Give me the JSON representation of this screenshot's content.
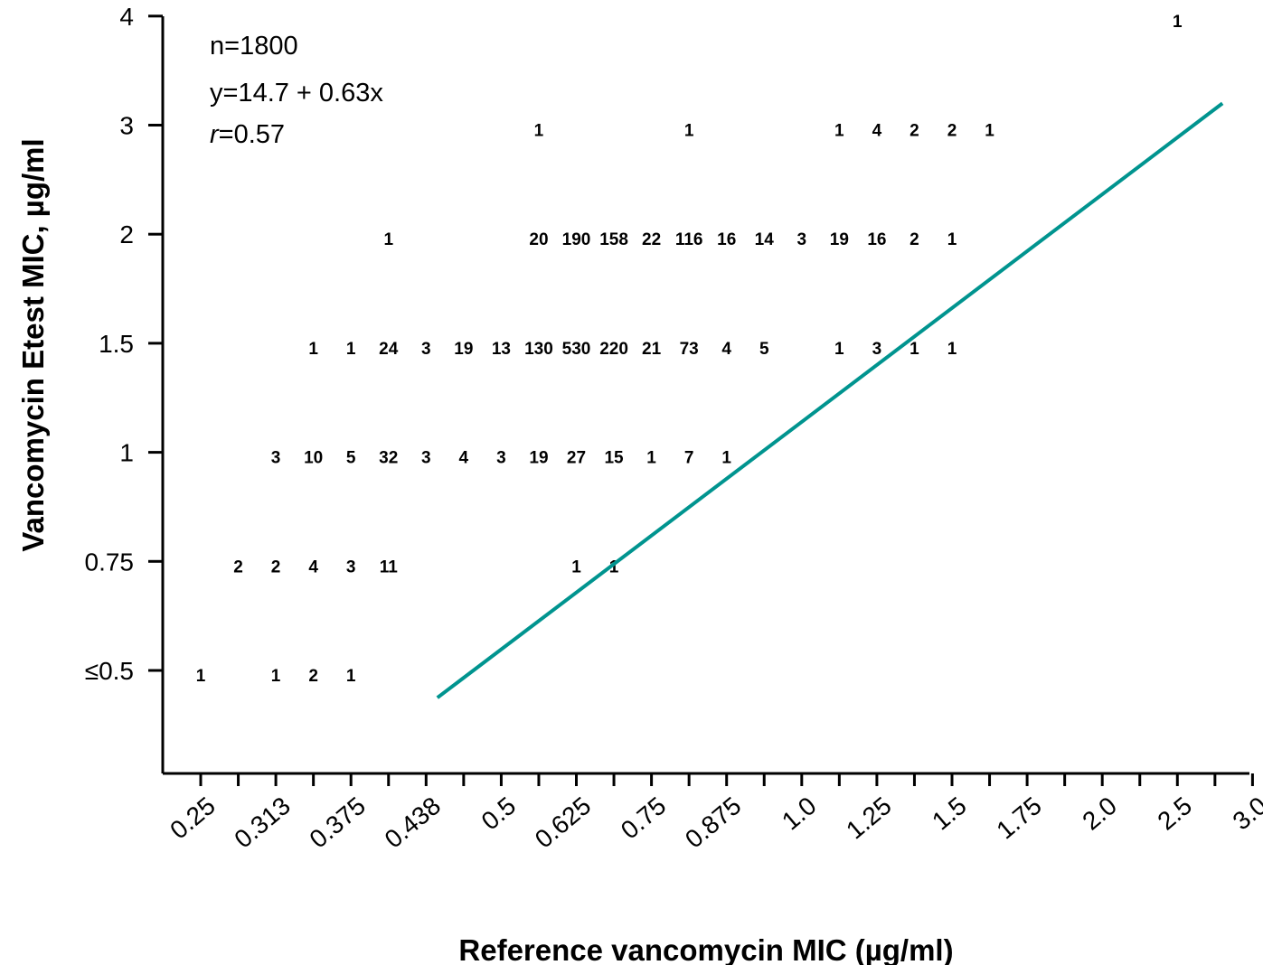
{
  "chart_data": {
    "type": "scatter",
    "title": "",
    "xlabel": "Reference vancomycin MIC (µg/ml)",
    "ylabel": "Vancomycin Etest MIC, µg/ml",
    "x_ticks": [
      "0.25",
      "0.313",
      "0.375",
      "0.438",
      "0.5",
      "0.625",
      "0.75",
      "0.875",
      "1.0",
      "1.25",
      "1.5",
      "1.75",
      "2.0",
      "2.5",
      "3.0"
    ],
    "y_ticks": [
      "≤0.5",
      "0.75",
      "1",
      "1.5",
      "2",
      "3",
      "4"
    ],
    "annotations": {
      "n": "n=1800",
      "equation": "y=14.7 + 0.63x",
      "r_symbol": "r",
      "r_value": "=0.57"
    },
    "regression_line": {
      "color": "#00948F",
      "from": {
        "x_index": 7.3,
        "y_index": -0.25
      },
      "to": {
        "x_index": 28.2,
        "y_index": 5.2
      }
    },
    "grid": false,
    "legend": "none",
    "counts": [
      {
        "x_index": 1,
        "y": "≤0.5",
        "label": "1"
      },
      {
        "x_index": 3,
        "y": "≤0.5",
        "label": "1"
      },
      {
        "x_index": 4,
        "y": "≤0.5",
        "label": "2"
      },
      {
        "x_index": 5,
        "y": "≤0.5",
        "label": "1"
      },
      {
        "x_index": 2,
        "y": "0.75",
        "label": "2"
      },
      {
        "x_index": 3,
        "y": "0.75",
        "label": "2"
      },
      {
        "x_index": 4,
        "y": "0.75",
        "label": "4"
      },
      {
        "x_index": 5,
        "y": "0.75",
        "label": "3"
      },
      {
        "x_index": 6,
        "y": "0.75",
        "label": "11"
      },
      {
        "x_index": 11,
        "y": "0.75",
        "label": "1"
      },
      {
        "x_index": 12,
        "y": "0.75",
        "label": "1"
      },
      {
        "x_index": 3,
        "y": "1",
        "label": "3"
      },
      {
        "x_index": 4,
        "y": "1",
        "label": "10"
      },
      {
        "x_index": 5,
        "y": "1",
        "label": "5"
      },
      {
        "x_index": 6,
        "y": "1",
        "label": "32"
      },
      {
        "x_index": 7,
        "y": "1",
        "label": "3"
      },
      {
        "x_index": 8,
        "y": "1",
        "label": "4"
      },
      {
        "x_index": 9,
        "y": "1",
        "label": "3"
      },
      {
        "x_index": 10,
        "y": "1",
        "label": "19"
      },
      {
        "x_index": 11,
        "y": "1",
        "label": "27"
      },
      {
        "x_index": 12,
        "y": "1",
        "label": "15"
      },
      {
        "x_index": 13,
        "y": "1",
        "label": "1"
      },
      {
        "x_index": 14,
        "y": "1",
        "label": "7"
      },
      {
        "x_index": 15,
        "y": "1",
        "label": "1"
      },
      {
        "x_index": 4,
        "y": "1.5",
        "label": "1"
      },
      {
        "x_index": 5,
        "y": "1.5",
        "label": "1"
      },
      {
        "x_index": 6,
        "y": "1.5",
        "label": "24"
      },
      {
        "x_index": 7,
        "y": "1.5",
        "label": "3"
      },
      {
        "x_index": 8,
        "y": "1.5",
        "label": "19"
      },
      {
        "x_index": 9,
        "y": "1.5",
        "label": "13"
      },
      {
        "x_index": 10,
        "y": "1.5",
        "label": "130"
      },
      {
        "x_index": 11,
        "y": "1.5",
        "label": "530"
      },
      {
        "x_index": 12,
        "y": "1.5",
        "label": "220"
      },
      {
        "x_index": 13,
        "y": "1.5",
        "label": "21"
      },
      {
        "x_index": 14,
        "y": "1.5",
        "label": "73"
      },
      {
        "x_index": 15,
        "y": "1.5",
        "label": "4"
      },
      {
        "x_index": 16,
        "y": "1.5",
        "label": "5"
      },
      {
        "x_index": 18,
        "y": "1.5",
        "label": "1"
      },
      {
        "x_index": 19,
        "y": "1.5",
        "label": "3"
      },
      {
        "x_index": 20,
        "y": "1.5",
        "label": "1"
      },
      {
        "x_index": 21,
        "y": "1.5",
        "label": "1"
      },
      {
        "x_index": 6,
        "y": "2",
        "label": "1"
      },
      {
        "x_index": 10,
        "y": "2",
        "label": "20"
      },
      {
        "x_index": 11,
        "y": "2",
        "label": "190"
      },
      {
        "x_index": 12,
        "y": "2",
        "label": "158"
      },
      {
        "x_index": 13,
        "y": "2",
        "label": "22"
      },
      {
        "x_index": 14,
        "y": "2",
        "label": "116"
      },
      {
        "x_index": 15,
        "y": "2",
        "label": "16"
      },
      {
        "x_index": 16,
        "y": "2",
        "label": "14"
      },
      {
        "x_index": 17,
        "y": "2",
        "label": "3"
      },
      {
        "x_index": 18,
        "y": "2",
        "label": "19"
      },
      {
        "x_index": 19,
        "y": "2",
        "label": "16"
      },
      {
        "x_index": 20,
        "y": "2",
        "label": "2"
      },
      {
        "x_index": 21,
        "y": "2",
        "label": "1"
      },
      {
        "x_index": 10,
        "y": "3",
        "label": "1"
      },
      {
        "x_index": 14,
        "y": "3",
        "label": "1"
      },
      {
        "x_index": 18,
        "y": "3",
        "label": "1"
      },
      {
        "x_index": 19,
        "y": "3",
        "label": "4"
      },
      {
        "x_index": 20,
        "y": "3",
        "label": "2"
      },
      {
        "x_index": 21,
        "y": "3",
        "label": "2"
      },
      {
        "x_index": 22,
        "y": "3",
        "label": "1"
      },
      {
        "x_index": 27,
        "y": "4",
        "label": "1"
      }
    ]
  }
}
